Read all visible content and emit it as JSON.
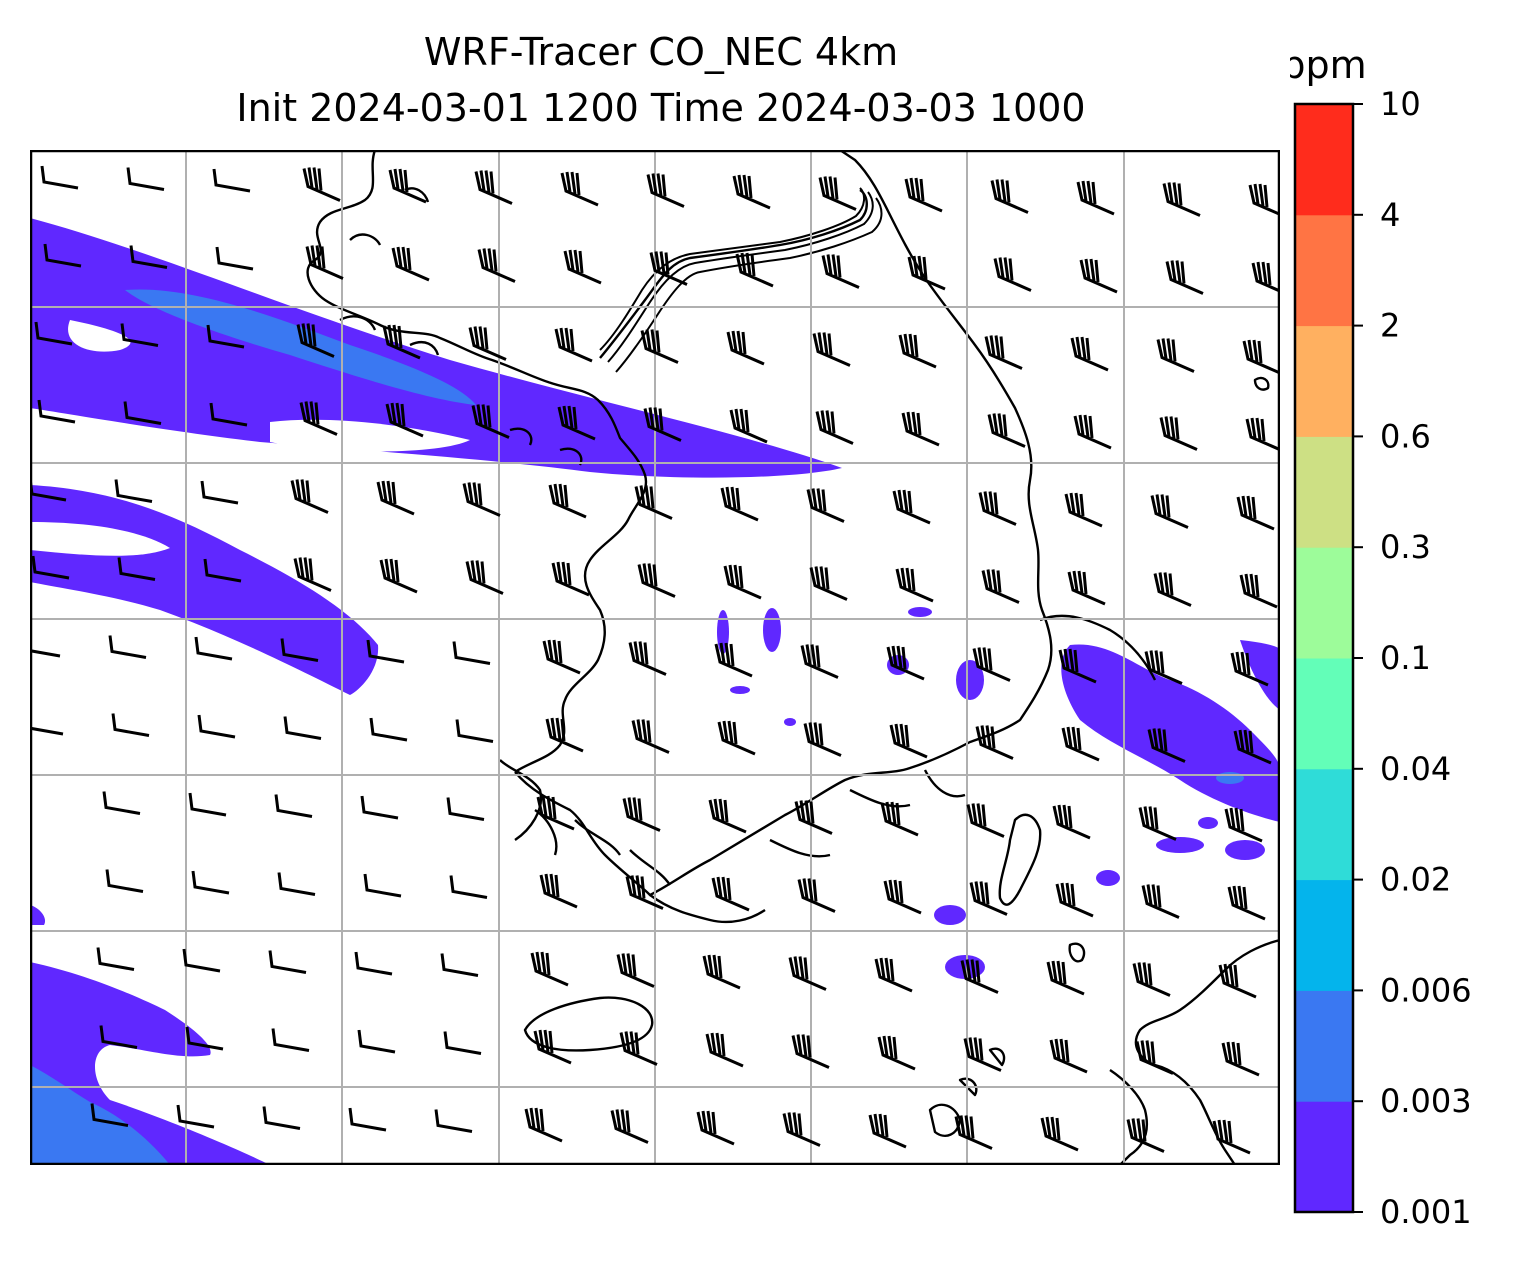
{
  "title": {
    "line1": "WRF-Tracer CO_NEC 4km",
    "line2": "Init 2024-03-01 1200 Time 2024-03-03 1000"
  },
  "colorbar": {
    "unit_label": "ppm",
    "levels": [
      "0.001",
      "0.003",
      "0.006",
      "0.02",
      "0.04",
      "0.1",
      "0.3",
      "0.6",
      "2",
      "4",
      "10"
    ],
    "colors": [
      "#6028ff",
      "#3a78f2",
      "#04b4ec",
      "#2fdcd8",
      "#63feb8",
      "#9dfc9a",
      "#cde084",
      "#ffb060",
      "#ff7444",
      "#ff2c1c"
    ]
  },
  "map": {
    "layers": [
      "tracer-concentration-fill",
      "coastline",
      "national-border",
      "gridlines",
      "wind-barbs"
    ],
    "gridlines": true,
    "wind_barb_color": "#000000",
    "coastline_color": "#000000",
    "grid_color": "#b0b0b0"
  }
}
